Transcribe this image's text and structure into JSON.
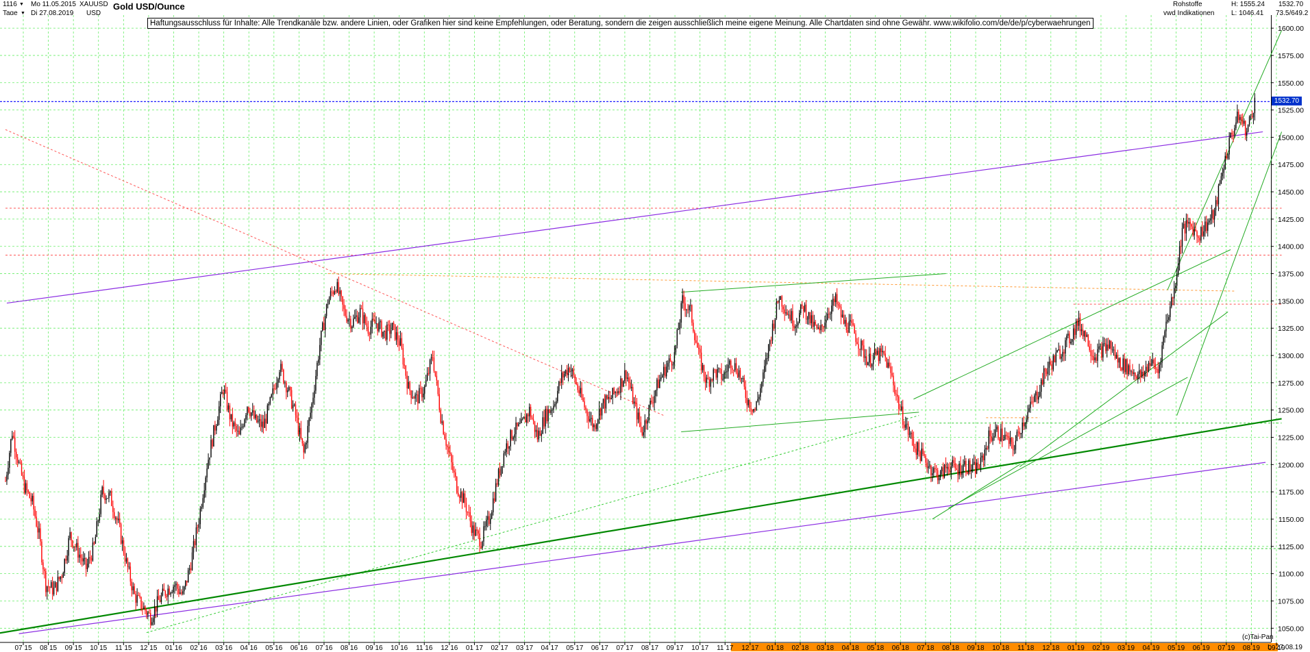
{
  "header": {
    "count": "1116",
    "period": "Tage",
    "start_date": "Mo 11.05.2015",
    "end_date": "Di 27.08.2019",
    "symbol": "XAUUSD",
    "currency": "USD",
    "title": "Gold USD/Ounce",
    "category": "Rohstoffe",
    "source": "vwd Indikationen",
    "high": "H: 1555.24",
    "low": "L: 1046.41",
    "last": "1532.70",
    "ratio": "73.5/649.2"
  },
  "disclaimer": "Haftungsausschluss für Inhalte: Alle Trendkanäle bzw. andere Linien, oder Grafiken hier sind keine Empfehlungen, oder Beratung, sondern die zeigen ausschließlich meine eigene Meinung. Alle Chartdaten sind ohne Gewähr.  www.wikifolio.com/de/de/p/cyberwaehrungen",
  "footer": {
    "credit": "(c)Tai-Pan",
    "date": "27.08.19",
    "axis_flag": "L"
  },
  "colors": {
    "up_candle": "#000000",
    "down_candle": "#ff0000",
    "grid": "#66ee66",
    "trend_purple": "#8a2be2",
    "trend_green": "#008800",
    "current_price_line": "#0000ff",
    "highlight_axis": "#ff8c00"
  },
  "chart_data": {
    "type": "candlestick",
    "title": "Gold USD/Ounce",
    "ylim": [
      1037,
      1612
    ],
    "yticks": [
      1050,
      1075,
      1100,
      1125,
      1150,
      1175,
      1200,
      1225,
      1250,
      1275,
      1300,
      1325,
      1350,
      1375,
      1400,
      1425,
      1450,
      1475,
      1500,
      1525,
      1550,
      1575,
      1600
    ],
    "current_price": 1532.7,
    "x_labels": [
      "07 15",
      "08 15",
      "09 15",
      "10 15",
      "11 15",
      "12 15",
      "01 16",
      "02 16",
      "03 16",
      "04 16",
      "05 16",
      "06 16",
      "07 16",
      "08 16",
      "09 16",
      "10 16",
      "11 16",
      "12 16",
      "01 17",
      "02 17",
      "03 17",
      "04 17",
      "05 17",
      "06 17",
      "07 17",
      "08 17",
      "09 17",
      "10 17",
      "11 17",
      "12 17",
      "01 18",
      "02 18",
      "03 18",
      "04 18",
      "05 18",
      "06 18",
      "07 18",
      "08 18",
      "09 18",
      "10 18",
      "11 18",
      "12 18",
      "01 19",
      "02 19",
      "03 19",
      "04 19",
      "05 19",
      "06 19",
      "07 19",
      "08 19",
      "09 19"
    ],
    "highlighted_labels_from": "12 17",
    "price_path": [
      [
        0,
        1185
      ],
      [
        5,
        1230
      ],
      [
        10,
        1200
      ],
      [
        14,
        1180
      ],
      [
        20,
        1165
      ],
      [
        25,
        1135
      ],
      [
        30,
        1090
      ],
      [
        36,
        1085
      ],
      [
        42,
        1100
      ],
      [
        48,
        1135
      ],
      [
        54,
        1120
      ],
      [
        60,
        1105
      ],
      [
        66,
        1125
      ],
      [
        72,
        1175
      ],
      [
        78,
        1170
      ],
      [
        84,
        1145
      ],
      [
        90,
        1110
      ],
      [
        96,
        1080
      ],
      [
        102,
        1070
      ],
      [
        108,
        1060
      ],
      [
        114,
        1075
      ],
      [
        120,
        1085
      ],
      [
        126,
        1090
      ],
      [
        132,
        1080
      ],
      [
        138,
        1110
      ],
      [
        144,
        1150
      ],
      [
        150,
        1200
      ],
      [
        156,
        1235
      ],
      [
        162,
        1270
      ],
      [
        168,
        1240
      ],
      [
        174,
        1225
      ],
      [
        180,
        1255
      ],
      [
        186,
        1240
      ],
      [
        192,
        1235
      ],
      [
        198,
        1260
      ],
      [
        204,
        1290
      ],
      [
        210,
        1270
      ],
      [
        216,
        1245
      ],
      [
        222,
        1210
      ],
      [
        228,
        1255
      ],
      [
        234,
        1310
      ],
      [
        240,
        1350
      ],
      [
        246,
        1365
      ],
      [
        252,
        1340
      ],
      [
        258,
        1330
      ],
      [
        264,
        1340
      ],
      [
        270,
        1325
      ],
      [
        276,
        1330
      ],
      [
        282,
        1320
      ],
      [
        288,
        1325
      ],
      [
        294,
        1310
      ],
      [
        300,
        1270
      ],
      [
        306,
        1260
      ],
      [
        312,
        1270
      ],
      [
        318,
        1300
      ],
      [
        324,
        1245
      ],
      [
        330,
        1210
      ],
      [
        336,
        1180
      ],
      [
        342,
        1165
      ],
      [
        348,
        1140
      ],
      [
        354,
        1130
      ],
      [
        360,
        1150
      ],
      [
        366,
        1185
      ],
      [
        372,
        1215
      ],
      [
        378,
        1230
      ],
      [
        384,
        1235
      ],
      [
        390,
        1250
      ],
      [
        396,
        1225
      ],
      [
        402,
        1245
      ],
      [
        408,
        1255
      ],
      [
        414,
        1280
      ],
      [
        420,
        1290
      ],
      [
        426,
        1270
      ],
      [
        432,
        1250
      ],
      [
        438,
        1235
      ],
      [
        444,
        1255
      ],
      [
        450,
        1260
      ],
      [
        456,
        1270
      ],
      [
        462,
        1285
      ],
      [
        468,
        1255
      ],
      [
        474,
        1230
      ],
      [
        480,
        1255
      ],
      [
        486,
        1275
      ],
      [
        492,
        1290
      ],
      [
        498,
        1300
      ],
      [
        504,
        1350
      ],
      [
        510,
        1340
      ],
      [
        516,
        1300
      ],
      [
        522,
        1275
      ],
      [
        528,
        1285
      ],
      [
        534,
        1280
      ],
      [
        540,
        1295
      ],
      [
        546,
        1285
      ],
      [
        552,
        1260
      ],
      [
        558,
        1250
      ],
      [
        564,
        1280
      ],
      [
        570,
        1320
      ],
      [
        576,
        1355
      ],
      [
        582,
        1340
      ],
      [
        588,
        1330
      ],
      [
        594,
        1345
      ],
      [
        600,
        1330
      ],
      [
        606,
        1320
      ],
      [
        612,
        1340
      ],
      [
        618,
        1350
      ],
      [
        624,
        1330
      ],
      [
        630,
        1325
      ],
      [
        636,
        1310
      ],
      [
        642,
        1295
      ],
      [
        648,
        1300
      ],
      [
        654,
        1300
      ],
      [
        660,
        1280
      ],
      [
        666,
        1250
      ],
      [
        672,
        1230
      ],
      [
        678,
        1215
      ],
      [
        684,
        1205
      ],
      [
        690,
        1195
      ],
      [
        696,
        1190
      ],
      [
        702,
        1200
      ],
      [
        708,
        1195
      ],
      [
        714,
        1200
      ],
      [
        720,
        1195
      ],
      [
        726,
        1200
      ],
      [
        732,
        1225
      ],
      [
        738,
        1230
      ],
      [
        744,
        1225
      ],
      [
        750,
        1215
      ],
      [
        756,
        1235
      ],
      [
        762,
        1250
      ],
      [
        768,
        1265
      ],
      [
        774,
        1285
      ],
      [
        780,
        1295
      ],
      [
        786,
        1305
      ],
      [
        792,
        1315
      ],
      [
        798,
        1330
      ],
      [
        804,
        1320
      ],
      [
        810,
        1300
      ],
      [
        816,
        1305
      ],
      [
        822,
        1310
      ],
      [
        828,
        1295
      ],
      [
        834,
        1290
      ],
      [
        840,
        1285
      ],
      [
        846,
        1280
      ],
      [
        852,
        1295
      ],
      [
        858,
        1285
      ],
      [
        864,
        1330
      ],
      [
        870,
        1360
      ],
      [
        876,
        1415
      ],
      [
        882,
        1420
      ],
      [
        888,
        1410
      ],
      [
        894,
        1420
      ],
      [
        900,
        1430
      ],
      [
        906,
        1470
      ],
      [
        912,
        1500
      ],
      [
        918,
        1520
      ],
      [
        924,
        1505
      ],
      [
        930,
        1532.7
      ]
    ],
    "trendlines": [
      {
        "color": "purple",
        "width": 1.2,
        "points": [
          [
            1,
            1348
          ],
          [
            936,
            1505
          ]
        ]
      },
      {
        "color": "purple",
        "width": 1.2,
        "points": [
          [
            10,
            1045
          ],
          [
            938,
            1202
          ]
        ]
      },
      {
        "color": "green_dark",
        "width": 2.2,
        "points": [
          [
            -80,
            1030
          ],
          [
            950,
            1242
          ]
        ]
      },
      {
        "color": "green",
        "width": 1,
        "points": [
          [
            503,
            1358
          ],
          [
            700,
            1375
          ]
        ]
      },
      {
        "color": "green",
        "width": 1,
        "points": [
          [
            503,
            1230
          ],
          [
            680,
            1248
          ]
        ]
      },
      {
        "color": "green",
        "width": 1,
        "points": [
          [
            676,
            1260
          ],
          [
            912,
            1397
          ]
        ]
      },
      {
        "color": "green",
        "width": 1,
        "points": [
          [
            702,
            1160
          ],
          [
            880,
            1280
          ]
        ]
      },
      {
        "color": "green",
        "width": 1,
        "points": [
          [
            690,
            1150
          ],
          [
            755,
            1200
          ]
        ]
      },
      {
        "color": "green",
        "width": 1,
        "points": [
          [
            872,
            1245
          ],
          [
            950,
            1505
          ]
        ]
      },
      {
        "color": "green",
        "width": 1,
        "points": [
          [
            865,
            1360
          ],
          [
            950,
            1598
          ]
        ]
      },
      {
        "color": "green",
        "width": 1,
        "points": [
          [
            755,
            1198
          ],
          [
            910,
            1340
          ]
        ]
      }
    ],
    "dashed_lines": [
      {
        "color": "red",
        "points": [
          [
            0,
            1507
          ],
          [
            490,
            1245
          ]
        ]
      },
      {
        "color": "orange",
        "points": [
          [
            240,
            1375
          ],
          [
            915,
            1359
          ]
        ]
      },
      {
        "color": "red",
        "points": [
          [
            0,
            1435
          ],
          [
            950,
            1435
          ]
        ]
      },
      {
        "color": "red",
        "points": [
          [
            0,
            1392
          ],
          [
            950,
            1392
          ]
        ]
      },
      {
        "color": "red",
        "points": [
          [
            795,
            1347
          ],
          [
            950,
            1347
          ]
        ]
      },
      {
        "color": "green",
        "points": [
          [
            105,
            1046
          ],
          [
            680,
            1245
          ]
        ]
      },
      {
        "color": "green",
        "points": [
          [
            335,
            1123
          ],
          [
            950,
            1123
          ]
        ]
      },
      {
        "color": "green",
        "points": [
          [
            680,
            1238
          ],
          [
            950,
            1238
          ]
        ]
      },
      {
        "color": "orange",
        "points": [
          [
            730,
            1243
          ],
          [
            770,
            1243
          ]
        ]
      }
    ]
  }
}
